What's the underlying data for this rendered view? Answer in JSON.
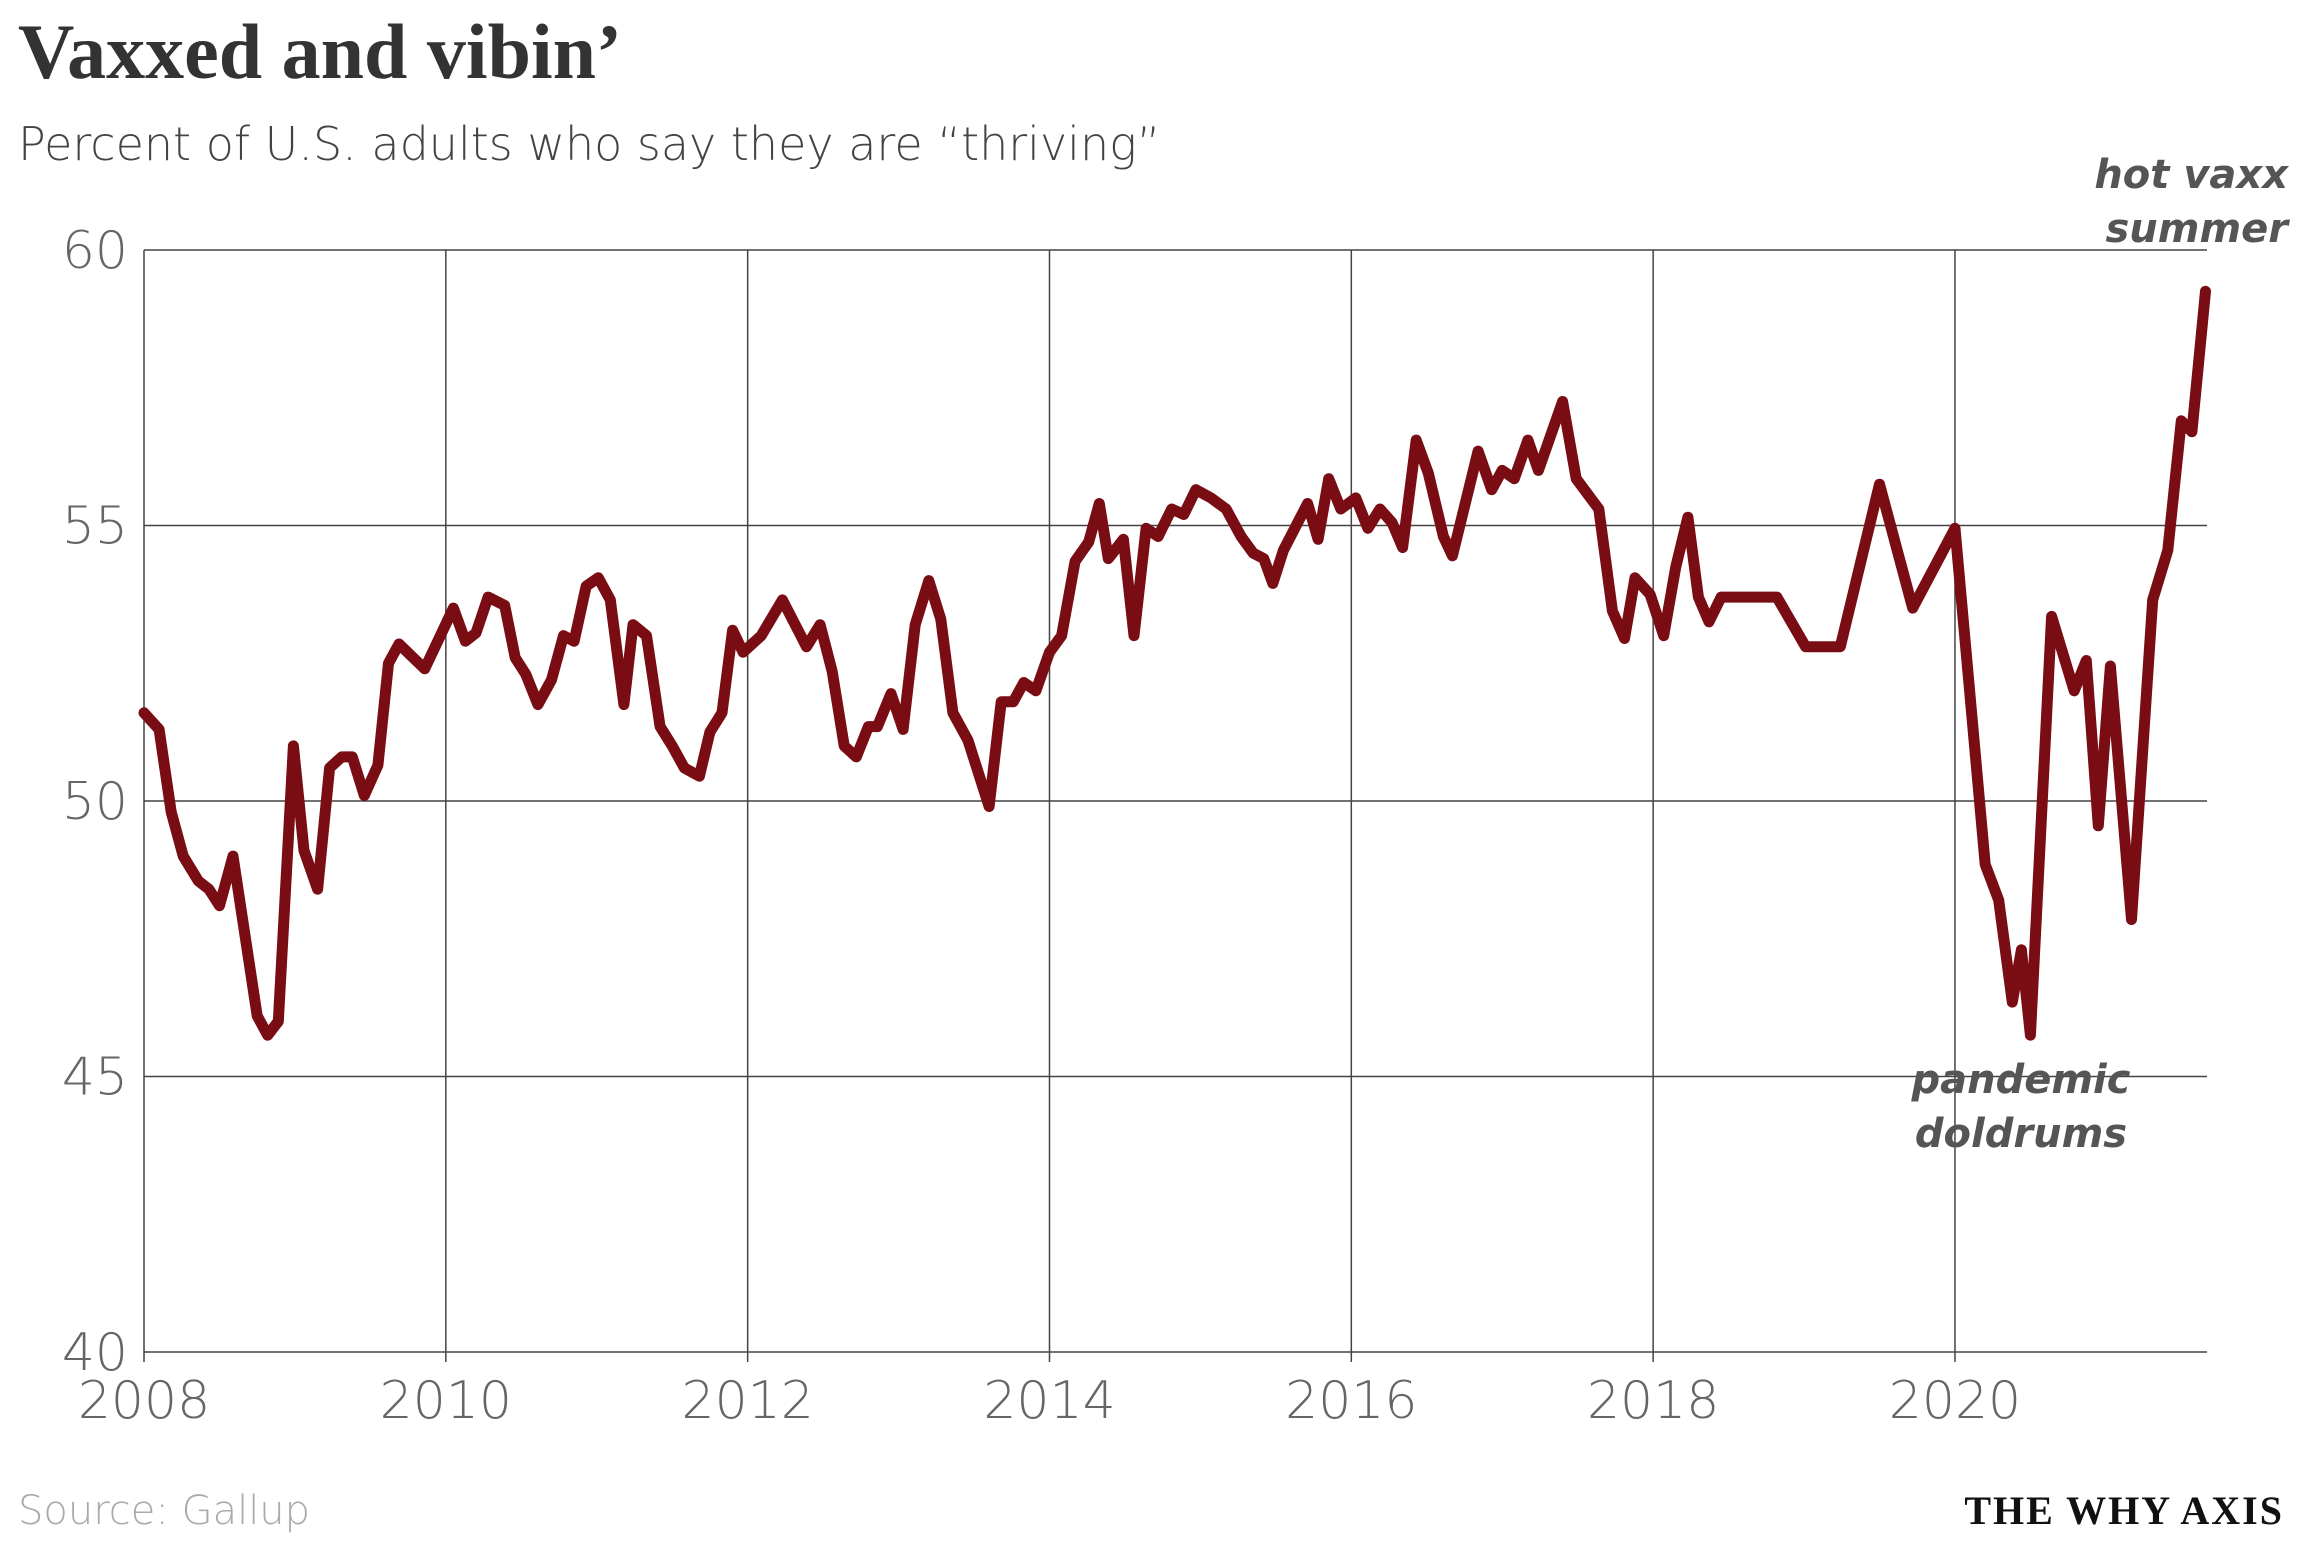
{
  "chart_data": {
    "type": "line",
    "title": "Vaxxed and vibin’",
    "subtitle": "Percent of U.S. adults who say they are “thriving”",
    "source": "Source: Gallup",
    "brand": "THE WHY AXIS",
    "annotations": [
      {
        "lines": [
          "hot vaxx",
          "summer"
        ]
      },
      {
        "lines": [
          "pandemic",
          "doldrums"
        ]
      }
    ],
    "xlim": [
      2008,
      2021.67
    ],
    "xticks": [
      2008,
      2010,
      2012,
      2014,
      2016,
      2018,
      2020
    ],
    "ylim": [
      40,
      60
    ],
    "yticks": [
      40,
      45,
      50,
      55,
      60
    ],
    "grid": true,
    "series": [
      {
        "name": "Thriving",
        "color": "#7a0c13",
        "x": [
          2008.0,
          2008.1,
          2008.18,
          2008.26,
          2008.36,
          2008.43,
          2008.5,
          2008.59,
          2008.75,
          2008.82,
          2008.89,
          2008.99,
          2009.06,
          2009.15,
          2009.23,
          2009.31,
          2009.38,
          2009.46,
          2009.55,
          2009.62,
          2009.69,
          2009.86,
          2010.05,
          2010.13,
          2010.2,
          2010.28,
          2010.39,
          2010.46,
          2010.53,
          2010.61,
          2010.7,
          2010.78,
          2010.85,
          2010.93,
          2011.01,
          2011.09,
          2011.18,
          2011.24,
          2011.33,
          2011.42,
          2011.5,
          2011.58,
          2011.68,
          2011.75,
          2011.83,
          2011.9,
          2011.97,
          2012.09,
          2012.23,
          2012.39,
          2012.48,
          2012.56,
          2012.64,
          2012.72,
          2012.8,
          2012.86,
          2012.95,
          2013.03,
          2013.11,
          2013.2,
          2013.28,
          2013.36,
          2013.46,
          2013.6,
          2013.68,
          2013.76,
          2013.83,
          2013.91,
          2014.0,
          2014.08,
          2014.17,
          2014.26,
          2014.33,
          2014.39,
          2014.49,
          2014.56,
          2014.64,
          2014.72,
          2014.81,
          2014.89,
          2014.97,
          2015.07,
          2015.17,
          2015.27,
          2015.35,
          2015.42,
          2015.48,
          2015.55,
          2015.71,
          2015.78,
          2015.85,
          2015.93,
          2016.03,
          2016.11,
          2016.19,
          2016.27,
          2016.34,
          2016.43,
          2016.51,
          2016.61,
          2016.67,
          2016.84,
          2016.93,
          2017.0,
          2017.08,
          2017.17,
          2017.24,
          2017.4,
          2017.49,
          2017.64,
          2017.73,
          2017.81,
          2017.88,
          2017.98,
          2018.07,
          2018.15,
          2018.23,
          2018.3,
          2018.37,
          2018.45,
          2018.82,
          2019.01,
          2019.24,
          2019.5,
          2019.72,
          2020.0,
          2020.2,
          2020.29,
          2020.38,
          2020.44,
          2020.5,
          2020.64,
          2020.79,
          2020.87,
          2020.95,
          2021.03,
          2021.17,
          2021.31,
          2021.41,
          2021.5,
          2021.57,
          2021.66
        ],
        "values": [
          51.6,
          51.3,
          49.8,
          49.0,
          48.55,
          48.4,
          48.1,
          49.0,
          46.1,
          45.75,
          46.0,
          51.0,
          49.1,
          48.4,
          50.6,
          50.8,
          50.8,
          50.1,
          50.65,
          52.5,
          52.85,
          52.4,
          53.5,
          52.9,
          53.05,
          53.7,
          53.55,
          52.6,
          52.3,
          51.75,
          52.2,
          53.0,
          52.9,
          53.9,
          54.05,
          53.65,
          51.75,
          53.2,
          53.0,
          51.35,
          51.0,
          50.6,
          50.45,
          51.25,
          51.6,
          53.1,
          52.7,
          53.0,
          53.65,
          52.8,
          53.2,
          52.35,
          51.0,
          50.8,
          51.35,
          51.35,
          51.95,
          51.3,
          53.2,
          54.0,
          53.3,
          51.6,
          51.1,
          49.9,
          51.8,
          51.8,
          52.15,
          52.0,
          52.7,
          53.0,
          54.35,
          54.7,
          55.4,
          54.4,
          54.75,
          53.0,
          54.95,
          54.8,
          55.3,
          55.2,
          55.65,
          55.5,
          55.3,
          54.8,
          54.5,
          54.4,
          53.95,
          54.55,
          55.4,
          54.75,
          55.85,
          55.3,
          55.5,
          54.95,
          55.3,
          55.05,
          54.6,
          56.55,
          55.95,
          54.8,
          54.45,
          56.35,
          55.65,
          56.0,
          55.85,
          56.55,
          56.0,
          57.25,
          55.85,
          55.3,
          53.45,
          52.95,
          54.05,
          53.75,
          53.0,
          54.25,
          55.15,
          53.7,
          53.25,
          53.7,
          53.7,
          52.8,
          52.8,
          55.75,
          53.5,
          54.95,
          48.85,
          48.2,
          46.35,
          47.3,
          45.75,
          53.35,
          52.0,
          52.55,
          49.55,
          52.45,
          47.85,
          53.65,
          54.55,
          56.9,
          56.7,
          59.25
        ]
      }
    ]
  }
}
